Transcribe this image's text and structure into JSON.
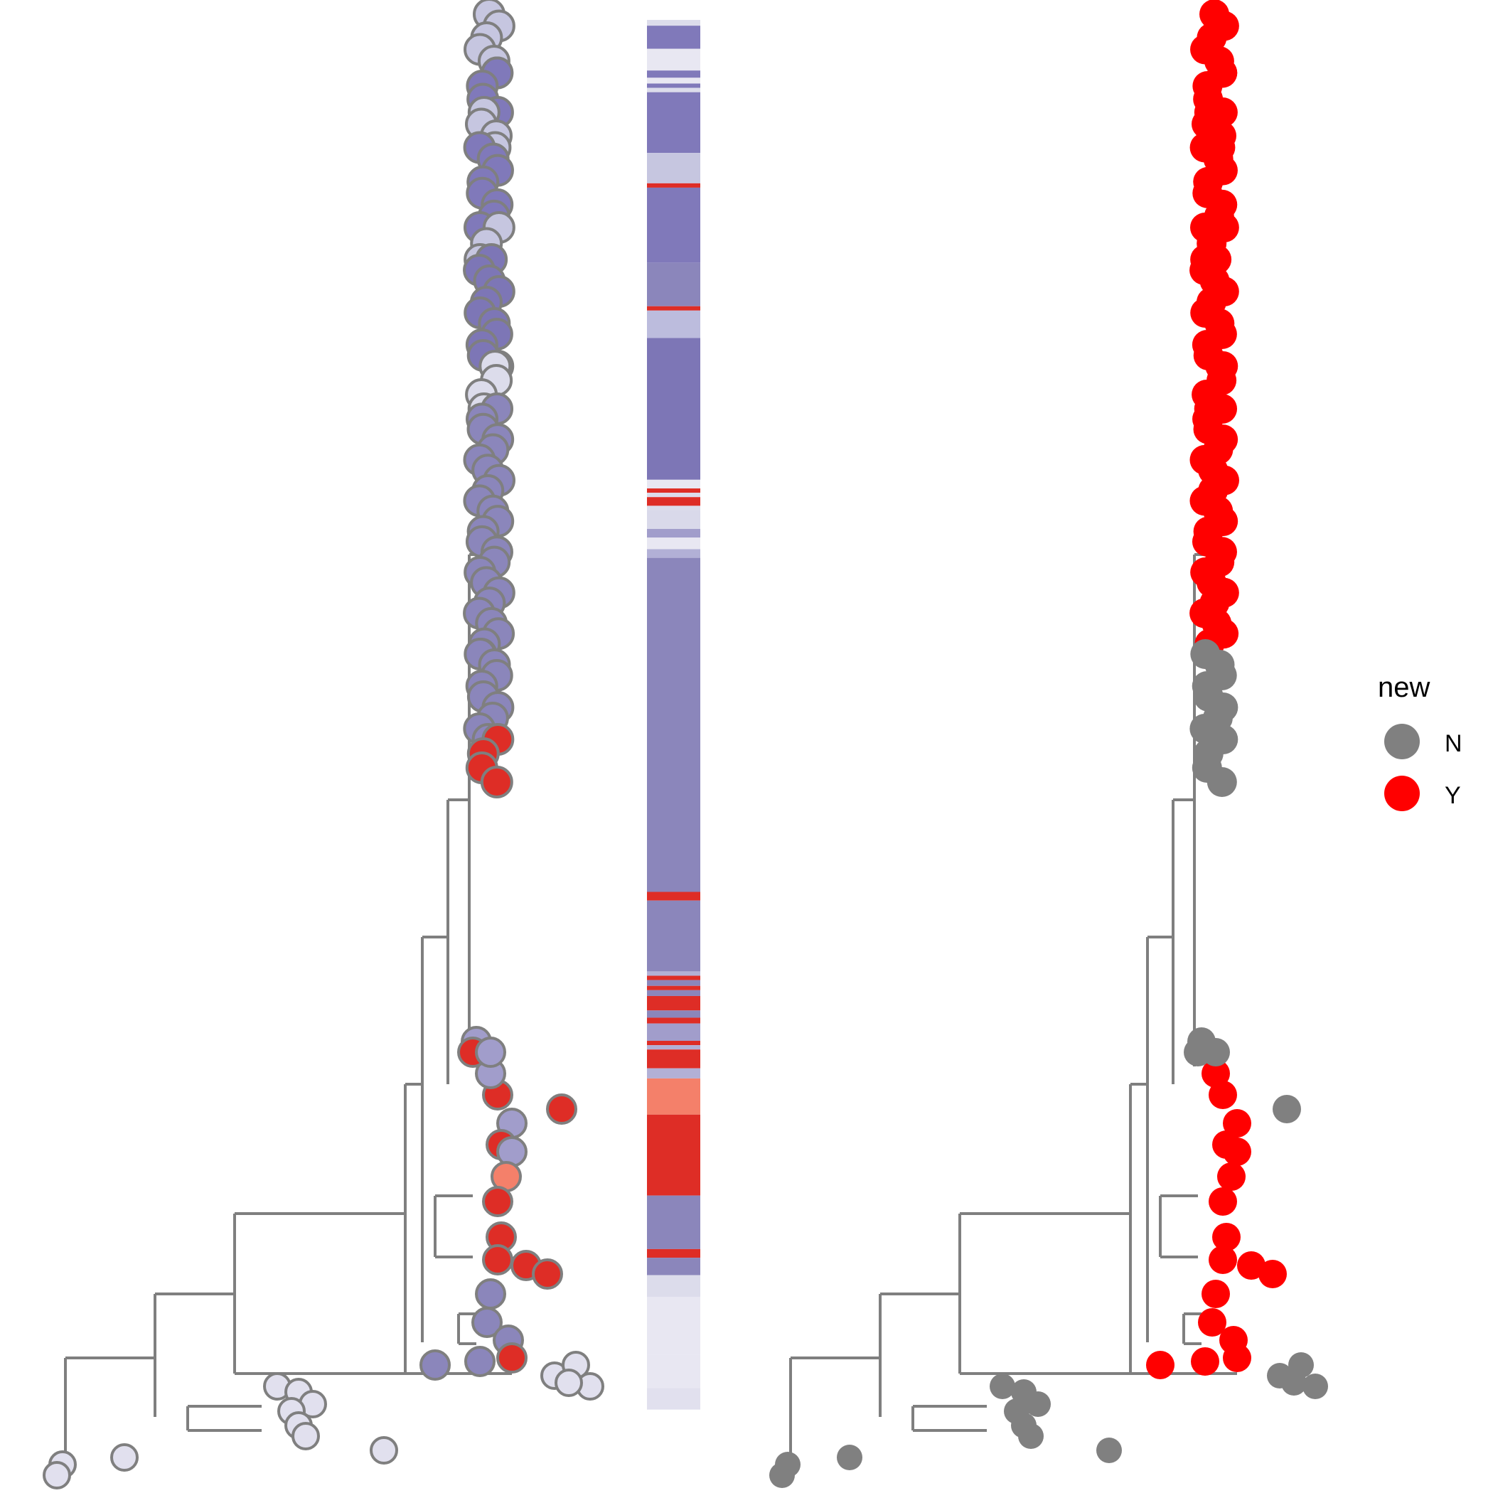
{
  "chart_data": {
    "type": "phylogenetic-tree",
    "panels": [
      {
        "name": "tree-fill-by-group",
        "tip_fill": "heatmap-group"
      },
      {
        "name": "heatmap-strip"
      },
      {
        "name": "tree-fill-by-new",
        "tip_fill": "new"
      }
    ],
    "legend": {
      "title": "new",
      "placement": "right",
      "entries": [
        {
          "label": "N",
          "color": "#808080"
        },
        {
          "label": "Y",
          "color": "#ff0000"
        }
      ]
    },
    "heatmap_bands": [
      {
        "from": 0.0,
        "to": 0.004,
        "color": "#dcdceb"
      },
      {
        "from": 0.004,
        "to": 0.02,
        "color": "#8079ba"
      },
      {
        "from": 0.02,
        "to": 0.035,
        "color": "#e8e7f2"
      },
      {
        "from": 0.035,
        "to": 0.04,
        "color": "#8079ba"
      },
      {
        "from": 0.04,
        "to": 0.044,
        "color": "#e8e7f2"
      },
      {
        "from": 0.044,
        "to": 0.047,
        "color": "#8079ba"
      },
      {
        "from": 0.047,
        "to": 0.05,
        "color": "#dcdceb"
      },
      {
        "from": 0.05,
        "to": 0.092,
        "color": "#8079ba"
      },
      {
        "from": 0.092,
        "to": 0.113,
        "color": "#c6c6e0"
      },
      {
        "from": 0.113,
        "to": 0.116,
        "color": "#de2d26"
      },
      {
        "from": 0.116,
        "to": 0.168,
        "color": "#8079ba"
      },
      {
        "from": 0.168,
        "to": 0.198,
        "color": "#8b86bb"
      },
      {
        "from": 0.198,
        "to": 0.201,
        "color": "#de2d26"
      },
      {
        "from": 0.201,
        "to": 0.22,
        "color": "#bcbcdd"
      },
      {
        "from": 0.22,
        "to": 0.318,
        "color": "#7d76b6"
      },
      {
        "from": 0.318,
        "to": 0.324,
        "color": "#e8e7f2"
      },
      {
        "from": 0.324,
        "to": 0.327,
        "color": "#de2d26"
      },
      {
        "from": 0.327,
        "to": 0.33,
        "color": "#dcdceb"
      },
      {
        "from": 0.33,
        "to": 0.336,
        "color": "#de2d26"
      },
      {
        "from": 0.336,
        "to": 0.339,
        "color": "#dcdceb"
      },
      {
        "from": 0.339,
        "to": 0.352,
        "color": "#d9d9ea"
      },
      {
        "from": 0.352,
        "to": 0.358,
        "color": "#a19dcb"
      },
      {
        "from": 0.358,
        "to": 0.366,
        "color": "#e8e7f2"
      },
      {
        "from": 0.366,
        "to": 0.372,
        "color": "#b2b0d6"
      },
      {
        "from": 0.372,
        "to": 0.603,
        "color": "#8b86bb"
      },
      {
        "from": 0.603,
        "to": 0.609,
        "color": "#de2d26"
      },
      {
        "from": 0.609,
        "to": 0.658,
        "color": "#8b86bb"
      },
      {
        "from": 0.658,
        "to": 0.661,
        "color": "#b2b0d6"
      },
      {
        "from": 0.661,
        "to": 0.664,
        "color": "#de2d26"
      },
      {
        "from": 0.664,
        "to": 0.668,
        "color": "#8b86bb"
      },
      {
        "from": 0.668,
        "to": 0.671,
        "color": "#de2d26"
      },
      {
        "from": 0.671,
        "to": 0.675,
        "color": "#8b86bb"
      },
      {
        "from": 0.675,
        "to": 0.685,
        "color": "#de2d26"
      },
      {
        "from": 0.685,
        "to": 0.69,
        "color": "#8b86bb"
      },
      {
        "from": 0.69,
        "to": 0.694,
        "color": "#de2d26"
      },
      {
        "from": 0.694,
        "to": 0.706,
        "color": "#a19dcb"
      },
      {
        "from": 0.706,
        "to": 0.709,
        "color": "#de2d26"
      },
      {
        "from": 0.709,
        "to": 0.712,
        "color": "#b2b0d6"
      },
      {
        "from": 0.712,
        "to": 0.725,
        "color": "#de2d26"
      },
      {
        "from": 0.725,
        "to": 0.732,
        "color": "#b2b0d6"
      },
      {
        "from": 0.732,
        "to": 0.757,
        "color": "#f4806a"
      },
      {
        "from": 0.757,
        "to": 0.813,
        "color": "#de2d26"
      },
      {
        "from": 0.813,
        "to": 0.85,
        "color": "#8b86bb"
      },
      {
        "from": 0.85,
        "to": 0.856,
        "color": "#de2d26"
      },
      {
        "from": 0.856,
        "to": 0.868,
        "color": "#8b86bb"
      },
      {
        "from": 0.868,
        "to": 0.883,
        "color": "#dcdceb"
      },
      {
        "from": 0.883,
        "to": 0.923,
        "color": "#e8e7f2"
      },
      {
        "from": 0.923,
        "to": 0.946,
        "color": "#e8e7f2"
      },
      {
        "from": 0.946,
        "to": 0.961,
        "color": "#e1e0ee"
      }
    ],
    "tree_edges_norm": [],
    "tip_clusters": [
      {
        "y0": 0.0,
        "y1": 0.055,
        "x": 0.93,
        "group": "#c6c6e0",
        "new": "Y"
      },
      {
        "y0": 0.055,
        "y1": 0.092,
        "x": 0.92,
        "group": "#8079ba",
        "new": "Y"
      },
      {
        "y0": 0.092,
        "y1": 0.125,
        "x": 0.91,
        "group": "#c6c6e0",
        "new": "Y"
      },
      {
        "y0": 0.125,
        "y1": 0.2,
        "x": 0.92,
        "group": "#8079ba",
        "new": "Y"
      },
      {
        "y0": 0.2,
        "y1": 0.23,
        "x": 0.91,
        "group": "#c6c6e0",
        "new": "Y"
      },
      {
        "y0": 0.23,
        "y1": 0.33,
        "x": 0.92,
        "group": "#7d76b6",
        "new": "Y"
      },
      {
        "y0": 0.33,
        "y1": 0.37,
        "x": 0.9,
        "group": "#dcdceb",
        "new": "Y"
      },
      {
        "y0": 0.37,
        "y1": 0.6,
        "x": 0.92,
        "group": "#8b86bb",
        "new": "Y"
      },
      {
        "y0": 0.6,
        "y1": 0.68,
        "x": 0.91,
        "group": "#8b86bb",
        "new": "N"
      },
      {
        "y0": 0.68,
        "y1": 0.72,
        "x": 0.9,
        "group": "#de2d26",
        "new": "N"
      }
    ]
  }
}
